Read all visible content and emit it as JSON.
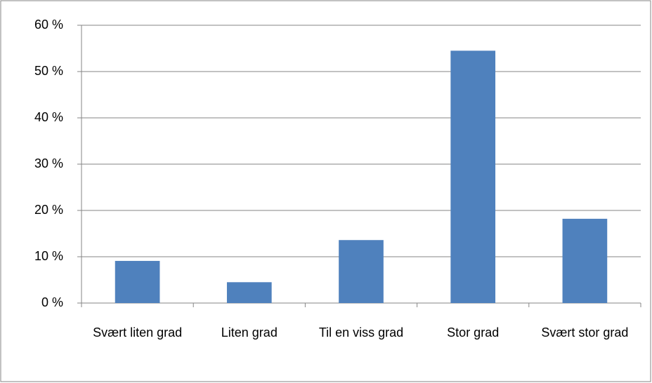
{
  "chart_data": {
    "type": "bar",
    "categories": [
      "Svært liten grad",
      "Liten grad",
      "Til en viss grad",
      "Stor grad",
      "Svært stor grad"
    ],
    "values": [
      9.1,
      4.5,
      13.6,
      54.5,
      18.2
    ],
    "color": "#4f81bd",
    "ylim": [
      0,
      60
    ],
    "yticks": [
      {
        "value": 0,
        "label": "0 %"
      },
      {
        "value": 10,
        "label": "10 %"
      },
      {
        "value": 20,
        "label": "20 %"
      },
      {
        "value": 30,
        "label": "30 %"
      },
      {
        "value": 40,
        "label": "40 %"
      },
      {
        "value": 50,
        "label": "50 %"
      },
      {
        "value": 60,
        "label": "60 %"
      }
    ],
    "grid": true
  }
}
